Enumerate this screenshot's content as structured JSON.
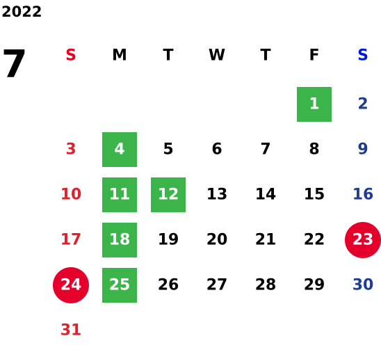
{
  "year": "2022",
  "month": "7",
  "weekdays": [
    "S",
    "M",
    "T",
    "W",
    "T",
    "F",
    "S"
  ],
  "weekday_colors": [
    "#e8001c",
    "#000000",
    "#000000",
    "#000000",
    "#000000",
    "#000000",
    "#0018d8"
  ],
  "day_colors": [
    "#e0202a",
    "#000000",
    "#000000",
    "#000000",
    "#000000",
    "#000000",
    "#1f3d8f"
  ],
  "highlight_colors": {
    "green": "#3bb54a",
    "red": "#e4002b"
  },
  "weeks": [
    [
      null,
      null,
      null,
      null,
      null,
      {
        "day": "1",
        "highlight": "green"
      },
      {
        "day": "2"
      }
    ],
    [
      {
        "day": "3"
      },
      {
        "day": "4",
        "highlight": "green"
      },
      {
        "day": "5"
      },
      {
        "day": "6"
      },
      {
        "day": "7"
      },
      {
        "day": "8"
      },
      {
        "day": "9"
      }
    ],
    [
      {
        "day": "10"
      },
      {
        "day": "11",
        "highlight": "green"
      },
      {
        "day": "12",
        "highlight": "green"
      },
      {
        "day": "13"
      },
      {
        "day": "14"
      },
      {
        "day": "15"
      },
      {
        "day": "16"
      }
    ],
    [
      {
        "day": "17"
      },
      {
        "day": "18",
        "highlight": "green"
      },
      {
        "day": "19"
      },
      {
        "day": "20"
      },
      {
        "day": "21"
      },
      {
        "day": "22"
      },
      {
        "day": "23",
        "highlight": "red"
      }
    ],
    [
      {
        "day": "24",
        "highlight": "red"
      },
      {
        "day": "25",
        "highlight": "green"
      },
      {
        "day": "26"
      },
      {
        "day": "27"
      },
      {
        "day": "28"
      },
      {
        "day": "29"
      },
      {
        "day": "30"
      }
    ],
    [
      {
        "day": "31"
      }
    ]
  ]
}
